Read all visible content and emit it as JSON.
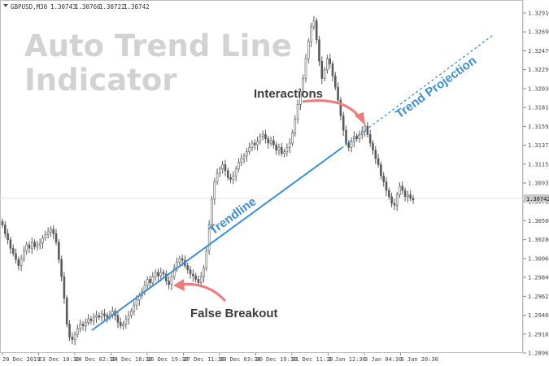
{
  "window": {
    "symbol_caption": "GBPUSD,M30",
    "ohlc": [
      "1.30743",
      "1.30766",
      "1.30722",
      "1.30742"
    ]
  },
  "overlay": {
    "title_line1": "Auto Trend Line",
    "title_line2": "Indicator",
    "trendline_label": "Trendline",
    "projection_label": "Trend Projection",
    "interactions_label": "Interactions",
    "false_breakout_label": "False Breakout"
  },
  "price_axis": {
    "ticks": [
      "1.32910",
      "1.32690",
      "1.32470",
      "1.32250",
      "1.32030",
      "1.31810",
      "1.31595",
      "1.31375",
      "1.31155",
      "1.30935",
      "1.30715",
      "1.30500",
      "1.30280",
      "1.30060",
      "1.29840",
      "1.29625",
      "1.29405",
      "1.29185",
      "1.28965"
    ],
    "current_price": "1.30742"
  },
  "time_axis": {
    "ticks": [
      "20 Dec 2019",
      "23 Dec 10:30",
      "24 Dec 02:30",
      "24 Dec 18:30",
      "26 Dec 19:30",
      "27 Dec 11:30",
      "30 Dec 03:30",
      "30 Dec 19:30",
      "31 Dec 11:30",
      "2 Jan 12:30",
      "3 Jan 04:30",
      "3 Jan 20:30"
    ]
  },
  "colors": {
    "trendline": "#3b8fd8",
    "arrow": "#f07a7a",
    "candle": "#5a5a5a",
    "overlay_title": "#d2d2d2",
    "label_dark": "#3c3c3c",
    "axis_badge": "#c8c8c8"
  },
  "chart_data": {
    "type": "candlestick",
    "series": [
      {
        "name": "GBPUSD,M30",
        "close": [
          1.3045,
          1.3035,
          1.3028,
          1.3018,
          1.3012,
          1.3005,
          1.2998,
          1.3006,
          1.3015,
          1.3022,
          1.3018,
          1.3025,
          1.302,
          1.3022,
          1.3024,
          1.303,
          1.3034,
          1.3037,
          1.304,
          1.3035,
          1.3025,
          1.3005,
          1.2985,
          1.296,
          1.293,
          1.2915,
          1.2912,
          1.2918,
          1.2925,
          1.293,
          1.2928,
          1.2932,
          1.2936,
          1.2934,
          1.2938,
          1.294,
          1.2938,
          1.2942,
          1.294,
          1.2938,
          1.2941,
          1.2945,
          1.294,
          1.2932,
          1.2928,
          1.293,
          1.2936,
          1.294,
          1.2945,
          1.2952,
          1.2958,
          1.2963,
          1.2968,
          1.2975,
          1.2982,
          1.2978,
          1.2985,
          1.299,
          1.2986,
          1.299,
          1.2988,
          1.298,
          1.2976,
          1.2985,
          1.2995,
          1.3002,
          1.3006,
          1.3004,
          1.2998,
          1.2993,
          1.2988,
          1.2986,
          1.2982,
          1.2978,
          1.2985,
          1.2995,
          1.3015,
          1.3045,
          1.3075,
          1.3095,
          1.3105,
          1.311,
          1.3115,
          1.3108,
          1.31,
          1.3098,
          1.3102,
          1.311,
          1.3118,
          1.3122,
          1.3125,
          1.313,
          1.3135,
          1.314,
          1.3138,
          1.3142,
          1.3148,
          1.315,
          1.3145,
          1.314,
          1.3143,
          1.3138,
          1.3132,
          1.3135,
          1.3128,
          1.313,
          1.3135,
          1.314,
          1.3152,
          1.3168,
          1.3185,
          1.32,
          1.3215,
          1.3238,
          1.3258,
          1.3275,
          1.3282,
          1.326,
          1.3235,
          1.3215,
          1.3225,
          1.3238,
          1.3232,
          1.3218,
          1.3205,
          1.319,
          1.3172,
          1.3155,
          1.314,
          1.3135,
          1.3142,
          1.3148,
          1.3145,
          1.315,
          1.3154,
          1.316,
          1.315,
          1.314,
          1.3132,
          1.3122,
          1.3115,
          1.3102,
          1.3095,
          1.3085,
          1.3078,
          1.307,
          1.3068,
          1.308,
          1.309,
          1.3085,
          1.3078,
          1.308,
          1.3076,
          1.3074
        ]
      }
    ],
    "ylim": [
      1.28965,
      1.3291
    ],
    "current_price": 1.30742
  }
}
